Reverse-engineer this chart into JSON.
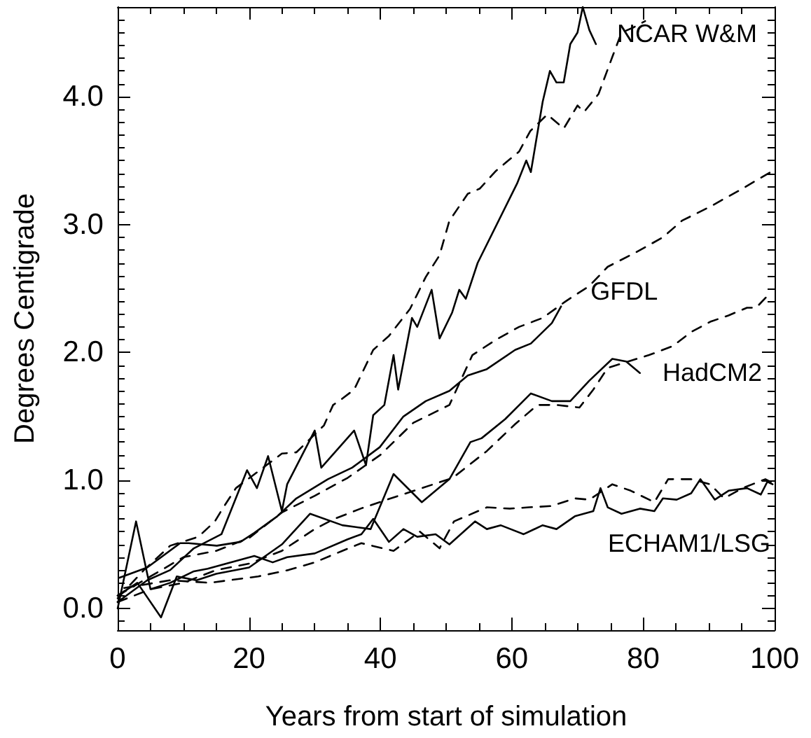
{
  "chart_data": {
    "type": "line",
    "xlabel": "Years from start of simulation",
    "ylabel": "Degrees Centigrade",
    "xlim": [
      0,
      100
    ],
    "ylim": [
      -0.17,
      4.7
    ],
    "xticks": [
      0,
      {
        "value": 5,
        "label": null
      },
      {
        "value": 10,
        "label": null
      },
      {
        "value": 15,
        "label": null
      },
      20,
      {
        "value": 25,
        "label": null
      },
      {
        "value": 30,
        "label": null
      },
      {
        "value": 35,
        "label": null
      },
      40,
      {
        "value": 45,
        "label": null
      },
      {
        "value": 50,
        "label": null
      },
      {
        "value": 55,
        "label": null
      },
      60,
      {
        "value": 65,
        "label": null
      },
      {
        "value": 70,
        "label": null
      },
      {
        "value": 75,
        "label": null
      },
      80,
      {
        "value": 85,
        "label": null
      },
      {
        "value": 90,
        "label": null
      },
      {
        "value": 95,
        "label": null
      },
      100
    ],
    "yticks": [
      {
        "value": -0.1,
        "label": null
      },
      {
        "value": 0,
        "label": "0.0"
      },
      {
        "value": 0.1,
        "label": null
      },
      {
        "value": 0.2,
        "label": null
      },
      {
        "value": 0.3,
        "label": null
      },
      {
        "value": 0.4,
        "label": null
      },
      {
        "value": 0.5,
        "label": null
      },
      {
        "value": 0.6,
        "label": null
      },
      {
        "value": 0.7,
        "label": null
      },
      {
        "value": 0.8,
        "label": null
      },
      {
        "value": 0.9,
        "label": null
      },
      {
        "value": 1,
        "label": "1.0"
      },
      {
        "value": 1.1,
        "label": null
      },
      {
        "value": 1.2,
        "label": null
      },
      {
        "value": 1.3,
        "label": null
      },
      {
        "value": 1.4,
        "label": null
      },
      {
        "value": 1.5,
        "label": null
      },
      {
        "value": 1.6,
        "label": null
      },
      {
        "value": 1.7,
        "label": null
      },
      {
        "value": 1.8,
        "label": null
      },
      {
        "value": 1.9,
        "label": null
      },
      {
        "value": 2,
        "label": "2.0"
      },
      {
        "value": 2.1,
        "label": null
      },
      {
        "value": 2.2,
        "label": null
      },
      {
        "value": 2.3,
        "label": null
      },
      {
        "value": 2.4,
        "label": null
      },
      {
        "value": 2.5,
        "label": null
      },
      {
        "value": 2.6,
        "label": null
      },
      {
        "value": 2.7,
        "label": null
      },
      {
        "value": 2.8,
        "label": null
      },
      {
        "value": 2.9,
        "label": null
      },
      {
        "value": 3,
        "label": "3.0"
      },
      {
        "value": 3.1,
        "label": null
      },
      {
        "value": 3.2,
        "label": null
      },
      {
        "value": 3.3,
        "label": null
      },
      {
        "value": 3.4,
        "label": null
      },
      {
        "value": 3.5,
        "label": null
      },
      {
        "value": 3.6,
        "label": null
      },
      {
        "value": 3.7,
        "label": null
      },
      {
        "value": 3.8,
        "label": null
      },
      {
        "value": 3.9,
        "label": null
      },
      {
        "value": 4,
        "label": "4.0"
      },
      {
        "value": 4.1,
        "label": null
      },
      {
        "value": 4.2,
        "label": null
      },
      {
        "value": 4.3,
        "label": null
      },
      {
        "value": 4.4,
        "label": null
      },
      {
        "value": 4.5,
        "label": null
      },
      {
        "value": 4.6,
        "label": null
      }
    ],
    "grid": false,
    "marker": "none",
    "series": [
      {
        "color": "#000000",
        "line_style": "solid",
        "x": [
          0,
          4.5,
          8,
          11.6,
          15.8,
          19.7,
          21.2,
          22.9,
          25,
          25.8,
          30,
          31,
          36,
          37.8,
          38.9,
          40.6,
          42,
          42.7,
          44.8,
          45.6,
          47.8,
          49,
          50.9,
          52,
          53,
          54.8,
          60.8,
          62.2,
          62.9,
          64.7,
          65.8,
          66.8,
          67.9,
          68.9,
          70,
          70.8,
          71.8,
          72.8
        ],
        "values": [
          0.05,
          0.22,
          0.3,
          0.47,
          0.58,
          1.08,
          0.94,
          1.19,
          0.76,
          0.97,
          1.39,
          1.1,
          1.39,
          1.12,
          1.51,
          1.59,
          1.98,
          1.71,
          2.27,
          2.2,
          2.49,
          2.11,
          2.31,
          2.49,
          2.42,
          2.7,
          3.32,
          3.5,
          3.41,
          3.96,
          4.2,
          4.11,
          4.11,
          4.41,
          4.5,
          4.7,
          4.52,
          4.41
        ]
      },
      {
        "color": "#000000",
        "line_style": "dashed",
        "x": [
          0,
          4,
          8,
          12.3,
          14.8,
          16.1,
          18,
          25,
          27.2,
          31.4,
          32.8,
          34.2,
          36,
          38.9,
          41.3,
          44.5,
          46.9,
          49,
          50.5,
          53.3,
          55.1,
          57.6,
          61.1,
          62.8,
          65.4,
          67.9,
          70,
          71,
          73.2,
          75.3,
          76.7,
          78.5,
          80.3
        ],
        "values": [
          0.08,
          0.3,
          0.49,
          0.56,
          0.68,
          0.79,
          0.94,
          1.21,
          1.22,
          1.43,
          1.59,
          1.64,
          1.71,
          2.02,
          2.13,
          2.34,
          2.59,
          2.76,
          3.03,
          3.24,
          3.28,
          3.42,
          3.57,
          3.73,
          3.86,
          3.75,
          3.93,
          3.88,
          4.02,
          4.31,
          4.5,
          4.54,
          4.59
        ]
      },
      {
        "color": "#000000",
        "line_style": "solid",
        "x": [
          0.3,
          4.5,
          9.5,
          10.8,
          15.1,
          18.7,
          20.8,
          24.3,
          27.2,
          32,
          35.7,
          39.9,
          43.5,
          46.9,
          50.5,
          53.3,
          56.2,
          60.5,
          62.9,
          66.1,
          67.5
        ],
        "values": [
          0.24,
          0.32,
          0.51,
          0.51,
          0.49,
          0.52,
          0.59,
          0.72,
          0.86,
          1.01,
          1.1,
          1.26,
          1.5,
          1.62,
          1.7,
          1.82,
          1.87,
          2.02,
          2.07,
          2.23,
          2.36
        ]
      },
      {
        "color": "#000000",
        "line_style": "dashed",
        "x": [
          0,
          5,
          10,
          15,
          20,
          25,
          30,
          35,
          40,
          45,
          50.5,
          54,
          57.6,
          61.1,
          64.7,
          68.2,
          71.8,
          74.6,
          78.8,
          83,
          85.9,
          90.2,
          94.4,
          99.4,
          100
        ],
        "values": [
          0.1,
          0.25,
          0.4,
          0.45,
          0.55,
          0.75,
          0.88,
          1.02,
          1.2,
          1.45,
          1.59,
          1.98,
          2.1,
          2.2,
          2.27,
          2.4,
          2.52,
          2.67,
          2.78,
          2.9,
          3.03,
          3.14,
          3.26,
          3.41,
          3.45
        ]
      },
      {
        "color": "#000000",
        "line_style": "solid",
        "x": [
          0,
          3,
          6.6,
          9,
          12,
          15,
          20,
          25,
          29.3,
          34.2,
          38.5,
          42,
          46.3,
          50.5,
          53.7,
          55.4,
          59,
          62.9,
          66.1,
          68.9,
          71.8,
          75.3,
          77.4,
          79.5
        ],
        "values": [
          0.1,
          0.2,
          -0.07,
          0.25,
          0.22,
          0.27,
          0.32,
          0.5,
          0.74,
          0.65,
          0.62,
          1.05,
          0.83,
          1.01,
          1.3,
          1.33,
          1.48,
          1.68,
          1.62,
          1.62,
          1.78,
          1.95,
          1.93,
          1.84
        ]
      },
      {
        "color": "#000000",
        "line_style": "dashed",
        "x": [
          0,
          5,
          10,
          15,
          20,
          25,
          30,
          33,
          37,
          41,
          46.3,
          51,
          56.2,
          60.5,
          63.9,
          66.8,
          70.3,
          72.4,
          74.6,
          80.9,
          84.5,
          87.3,
          90.2,
          93,
          95.8,
          97.2,
          99.4
        ],
        "values": [
          0.05,
          0.15,
          0.2,
          0.3,
          0.35,
          0.45,
          0.62,
          0.7,
          0.78,
          0.85,
          0.94,
          1.02,
          1.23,
          1.44,
          1.59,
          1.59,
          1.57,
          1.71,
          1.88,
          1.98,
          2.05,
          2.16,
          2.24,
          2.29,
          2.35,
          2.35,
          2.47
        ]
      },
      {
        "color": "#000000",
        "line_style": "solid",
        "x": [
          0,
          2.8,
          5,
          8,
          11.6,
          13.7,
          17.2,
          20.8,
          23.6,
          25.8,
          30,
          35,
          37.1,
          38.9,
          41.3,
          43.5,
          45.6,
          48.4,
          50.5,
          54.4,
          56.2,
          58.3,
          61.8,
          64.7,
          66.8,
          69.6,
          72.4,
          73.5,
          74.6,
          76.7,
          79.5,
          81.7,
          83,
          85.1,
          87.3,
          88.7,
          90.9,
          93,
          95.8,
          97.9,
          98.9,
          99.7
        ],
        "values": [
          0.0,
          0.68,
          0.15,
          0.2,
          0.29,
          0.31,
          0.36,
          0.41,
          0.36,
          0.4,
          0.43,
          0.54,
          0.58,
          0.7,
          0.52,
          0.62,
          0.56,
          0.58,
          0.5,
          0.68,
          0.62,
          0.65,
          0.58,
          0.65,
          0.62,
          0.72,
          0.76,
          0.94,
          0.79,
          0.74,
          0.78,
          0.76,
          0.86,
          0.85,
          0.9,
          1.01,
          0.85,
          0.92,
          0.94,
          0.89,
          0.99,
          0.97
        ]
      },
      {
        "color": "#000000",
        "line_style": "dashed",
        "x": [
          1,
          8,
          14,
          21.4,
          26,
          30,
          34.2,
          37.1,
          42,
          46,
          49,
          51.2,
          56.2,
          59.7,
          62.6,
          66,
          69.6,
          71.8,
          75.3,
          78.1,
          81.7,
          83.8,
          87.3,
          90.2,
          92.3,
          95.1,
          98.6,
          99.7
        ],
        "values": [
          0.16,
          0.22,
          0.2,
          0.25,
          0.3,
          0.36,
          0.45,
          0.51,
          0.45,
          0.6,
          0.47,
          0.68,
          0.79,
          0.78,
          0.79,
          0.8,
          0.86,
          0.85,
          0.97,
          0.92,
          0.83,
          1.01,
          1.01,
          0.97,
          0.86,
          0.94,
          1.01,
          0.98
        ]
      }
    ],
    "annotations": [
      {
        "text": "NCAR W&M",
        "x": 76,
        "y": 4.49
      },
      {
        "text": "GFDL",
        "x": 72,
        "y": 2.48
      },
      "HadCM2",
      "ECHAM1/LSG"
    ]
  }
}
